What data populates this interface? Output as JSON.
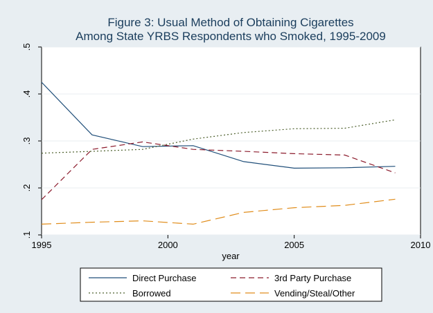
{
  "chart_data": {
    "type": "line",
    "title": "Figure 3: Usual Method of Obtaining Cigarettes",
    "subtitle": "Among State YRBS Respondents who Smoked, 1995-2009",
    "xlabel": "year",
    "ylabel": "",
    "xlim": [
      1995,
      2010
    ],
    "ylim": [
      0.1,
      0.5
    ],
    "x_ticks": [
      1995,
      2000,
      2005,
      2010
    ],
    "x_tick_labels": [
      "1995",
      "2000",
      "2005",
      "2010"
    ],
    "y_ticks": [
      0.1,
      0.2,
      0.3,
      0.4,
      0.5
    ],
    "y_tick_labels": [
      ".1",
      ".2",
      ".3",
      ".4",
      ".5"
    ],
    "grid": true,
    "legend_position": "bottom",
    "x": [
      1995,
      1997,
      1999,
      2001,
      2003,
      2005,
      2007,
      2009
    ],
    "series": [
      {
        "name": "Direct Purchase",
        "color": "#1f4e79",
        "dash": "solid",
        "values": [
          0.425,
          0.313,
          0.288,
          0.29,
          0.256,
          0.242,
          0.243,
          0.246
        ]
      },
      {
        "name": "3rd Party Purchase",
        "color": "#8b1a2b",
        "dash": "dash",
        "values": [
          0.175,
          0.282,
          0.298,
          0.282,
          0.278,
          0.273,
          0.27,
          0.232
        ]
      },
      {
        "name": "Borrowed",
        "color": "#4b5e2a",
        "dash": "dot",
        "values": [
          0.274,
          0.278,
          0.282,
          0.304,
          0.318,
          0.326,
          0.327,
          0.345
        ]
      },
      {
        "name": "Vending/Steal/Other",
        "color": "#e08c1a",
        "dash": "longdash",
        "values": [
          0.123,
          0.127,
          0.13,
          0.123,
          0.148,
          0.158,
          0.163,
          0.176
        ]
      }
    ]
  },
  "colors": {
    "outer_background": "#e8eef2",
    "plot_background": "#ffffff",
    "grid": "#e9eef2",
    "axis": "#000000",
    "title": "#1a3d5c"
  }
}
